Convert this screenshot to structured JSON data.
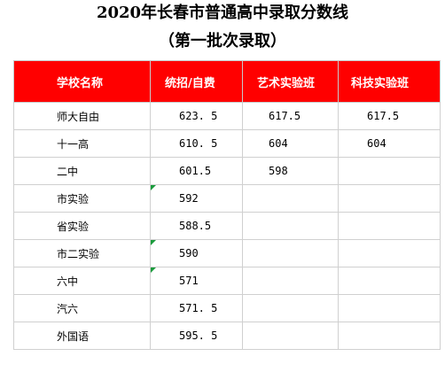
{
  "title": "2020年长春市普通高中录取分数线",
  "subtitle": "（第一批次录取）",
  "table": {
    "headers": [
      "学校名称",
      "统招/自费",
      "艺术实验班",
      "科技实验班"
    ],
    "rows": [
      [
        "师大自由",
        "623. 5",
        "617.5",
        "617.5"
      ],
      [
        "十一高",
        "610. 5",
        "604",
        "604"
      ],
      [
        "二中",
        "601.5",
        "598",
        ""
      ],
      [
        "市实验",
        "592",
        "",
        ""
      ],
      [
        "省实验",
        "588.5",
        "",
        ""
      ],
      [
        "市二实验",
        "590",
        "",
        ""
      ],
      [
        "六中",
        "571",
        "",
        ""
      ],
      [
        "汽六",
        "571. 5",
        "",
        ""
      ],
      [
        "外国语",
        "595. 5",
        "",
        ""
      ]
    ]
  },
  "colors": {
    "header_bg": "#ff0000",
    "header_text": "#ffffff",
    "grid": "#d0d0d0",
    "cell_flag": "#1a9b3c"
  }
}
